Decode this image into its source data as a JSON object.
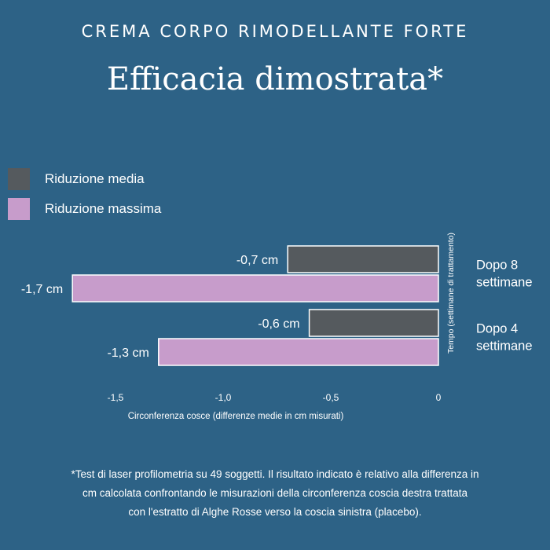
{
  "header": {
    "eyebrow": "CREMA CORPO RIMODELLANTE FORTE",
    "headline": "Efficacia dimostrata*"
  },
  "legend": [
    {
      "label": "Riduzione media",
      "color": "#555a5e"
    },
    {
      "label": "Riduzione massima",
      "color": "#c79ccb"
    }
  ],
  "chart_data": {
    "type": "bar",
    "orientation": "horizontal",
    "categories": [
      "Dopo 8 settimane",
      "Dopo 4 settimane"
    ],
    "series": [
      {
        "name": "Riduzione media",
        "values": [
          -0.7,
          -0.6
        ],
        "labels": [
          "-0,7 cm",
          "-0,6 cm"
        ],
        "color": "#555a5e"
      },
      {
        "name": "Riduzione massima",
        "values": [
          -1.7,
          -1.3
        ],
        "labels": [
          "-1,7 cm",
          "-1,3 cm"
        ],
        "color": "#c79ccb"
      }
    ],
    "xlabel": "Circonferenza cosce (differenze medie in cm misurati)",
    "ylabel": "Tempo (settimane di trattamento)",
    "xlim": [
      -1.7,
      0
    ],
    "xticks": [
      -1.5,
      -1.0,
      -0.5,
      0
    ],
    "xtick_labels": [
      "-1,5",
      "-1,0",
      "-0,5",
      "0"
    ],
    "category_labels": [
      [
        "Dopo 8",
        "settimane"
      ],
      [
        "Dopo 4",
        "settimane"
      ]
    ],
    "grid": false
  },
  "footnote": [
    "*Test di laser profilometria su 49 soggetti. Il risultato indicato è relativo alla differenza in",
    "cm calcolata confrontando le misurazioni della circonferenza coscia destra trattata",
    "con l'estratto di Alghe Rosse verso la coscia sinistra (placebo)."
  ]
}
